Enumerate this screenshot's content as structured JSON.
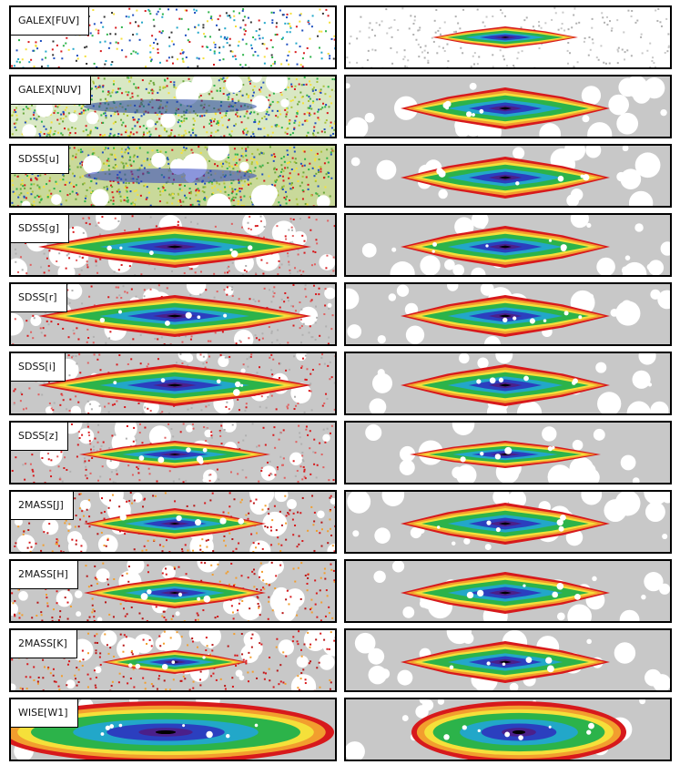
{
  "bands": [
    {
      "label": "GALEX[FUV]",
      "data_quality": "sparse",
      "model_quality": "sparse"
    },
    {
      "label": "GALEX[NUV]",
      "data_quality": "noisy",
      "model_quality": "full"
    },
    {
      "label": "SDSS[u]",
      "data_quality": "noisy",
      "model_quality": "full"
    },
    {
      "label": "SDSS[g]",
      "data_quality": "good",
      "model_quality": "full"
    },
    {
      "label": "SDSS[r]",
      "data_quality": "good",
      "model_quality": "full"
    },
    {
      "label": "SDSS[i]",
      "data_quality": "good",
      "model_quality": "full"
    },
    {
      "label": "SDSS[z]",
      "data_quality": "good",
      "model_quality": "full"
    },
    {
      "label": "2MASS[J]",
      "data_quality": "speckled",
      "model_quality": "full"
    },
    {
      "label": "2MASS[H]",
      "data_quality": "speckled",
      "model_quality": "full"
    },
    {
      "label": "2MASS[K]",
      "data_quality": "speckled",
      "model_quality": "full"
    },
    {
      "label": "WISE[W1]",
      "data_quality": "extended",
      "model_quality": "extended"
    }
  ],
  "colors": {
    "background_mask": "#c8c8c8",
    "mask_hole": "#ffffff",
    "red": "#d7191c",
    "orange": "#f29e2e",
    "yellow": "#f5e03a",
    "green": "#2cb34a",
    "cyan": "#22a7c9",
    "blue": "#2b3fbf",
    "violet": "#4b1f8a",
    "black": "#000000",
    "panel_border": "#000000"
  },
  "columns": [
    "observed-image",
    "model-image"
  ]
}
